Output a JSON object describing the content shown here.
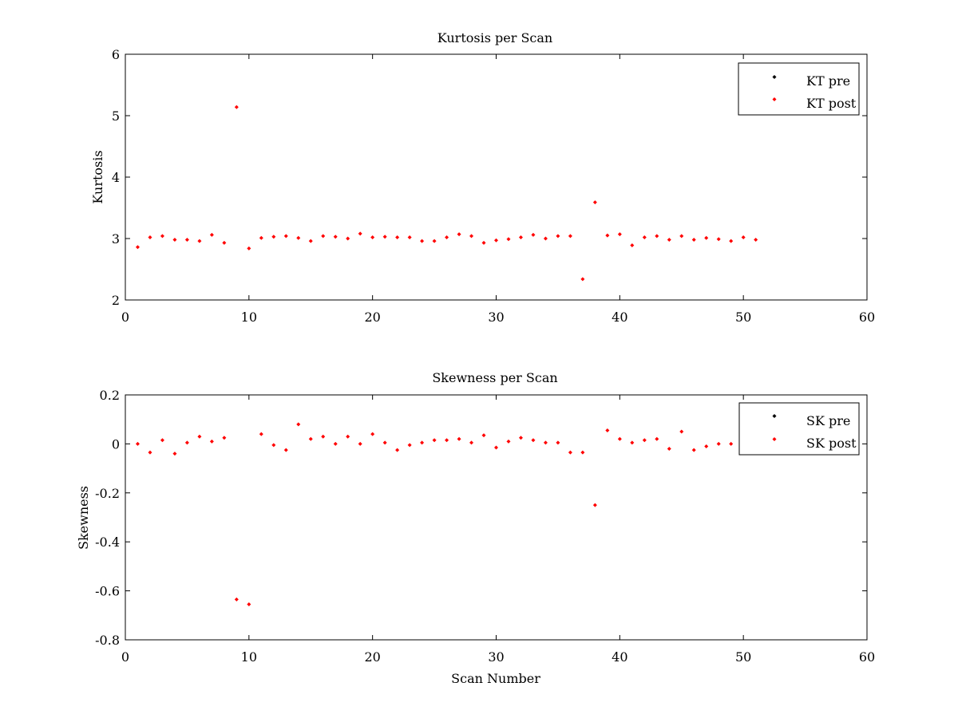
{
  "chart_data": [
    {
      "type": "scatter",
      "title": "Kurtosis per Scan",
      "xlabel": "",
      "ylabel": "Kurtosis",
      "xlim": [
        0,
        60
      ],
      "ylim": [
        2,
        6
      ],
      "xticks": [
        0,
        10,
        20,
        30,
        40,
        50,
        60
      ],
      "yticks": [
        2,
        3,
        4,
        5,
        6
      ],
      "grid": false,
      "legend_position": "top-right",
      "series": [
        {
          "name": "KT pre",
          "color": "#000000",
          "x": [],
          "y": []
        },
        {
          "name": "KT post",
          "color": "#ff0000",
          "x": [
            1,
            2,
            3,
            4,
            5,
            6,
            7,
            8,
            9,
            10,
            11,
            12,
            13,
            14,
            15,
            16,
            17,
            18,
            19,
            20,
            21,
            22,
            23,
            24,
            25,
            26,
            27,
            28,
            29,
            30,
            31,
            32,
            33,
            34,
            35,
            36,
            37,
            38,
            39,
            40,
            41,
            42,
            43,
            44,
            45,
            46,
            47,
            48,
            49,
            50,
            51
          ],
          "y": [
            2.86,
            3.02,
            3.04,
            2.98,
            2.98,
            2.96,
            3.06,
            2.93,
            5.14,
            2.84,
            3.01,
            3.03,
            3.04,
            3.01,
            2.96,
            3.04,
            3.03,
            3.0,
            3.08,
            3.02,
            3.03,
            3.02,
            3.02,
            2.96,
            2.96,
            3.02,
            3.07,
            3.04,
            2.93,
            2.97,
            2.99,
            3.02,
            3.06,
            3.0,
            3.04,
            3.04,
            2.34,
            3.59,
            3.05,
            3.07,
            2.89,
            3.02,
            3.04,
            2.98,
            3.04,
            2.98,
            3.01,
            2.99,
            2.96,
            3.02,
            2.98
          ]
        }
      ]
    },
    {
      "type": "scatter",
      "title": "Skewness per Scan",
      "xlabel": "Scan Number",
      "ylabel": "Skewness",
      "xlim": [
        0,
        60
      ],
      "ylim": [
        -0.8,
        0.2
      ],
      "xticks": [
        0,
        10,
        20,
        30,
        40,
        50,
        60
      ],
      "yticks": [
        -0.8,
        -0.6,
        -0.4,
        -0.2,
        0,
        0.2
      ],
      "ytick_labels": [
        "-0.8",
        "-0.6",
        "-0.4",
        "-0.2",
        "0",
        "0.2"
      ],
      "grid": false,
      "legend_position": "top-right",
      "series": [
        {
          "name": "SK pre",
          "color": "#000000",
          "x": [],
          "y": []
        },
        {
          "name": "SK post",
          "color": "#ff0000",
          "x": [
            1,
            2,
            3,
            4,
            5,
            6,
            7,
            8,
            9,
            10,
            11,
            12,
            13,
            14,
            15,
            16,
            17,
            18,
            19,
            20,
            21,
            22,
            23,
            24,
            25,
            26,
            27,
            28,
            29,
            30,
            31,
            32,
            33,
            34,
            35,
            36,
            37,
            38,
            39,
            40,
            41,
            42,
            43,
            44,
            45,
            46,
            47,
            48,
            49
          ],
          "y": [
            0.0,
            -0.035,
            0.015,
            -0.04,
            0.005,
            0.03,
            0.01,
            0.025,
            -0.635,
            -0.655,
            0.04,
            -0.005,
            -0.025,
            0.08,
            0.02,
            0.03,
            0.0,
            0.03,
            0.0,
            0.04,
            0.005,
            -0.025,
            -0.005,
            0.005,
            0.015,
            0.015,
            0.02,
            0.005,
            0.035,
            -0.015,
            0.01,
            0.025,
            0.015,
            0.005,
            0.005,
            -0.035,
            -0.035,
            -0.25,
            0.055,
            0.02,
            0.005,
            0.015,
            0.02,
            -0.02,
            0.05,
            -0.025,
            -0.01,
            0.0,
            0.0
          ]
        }
      ]
    }
  ]
}
